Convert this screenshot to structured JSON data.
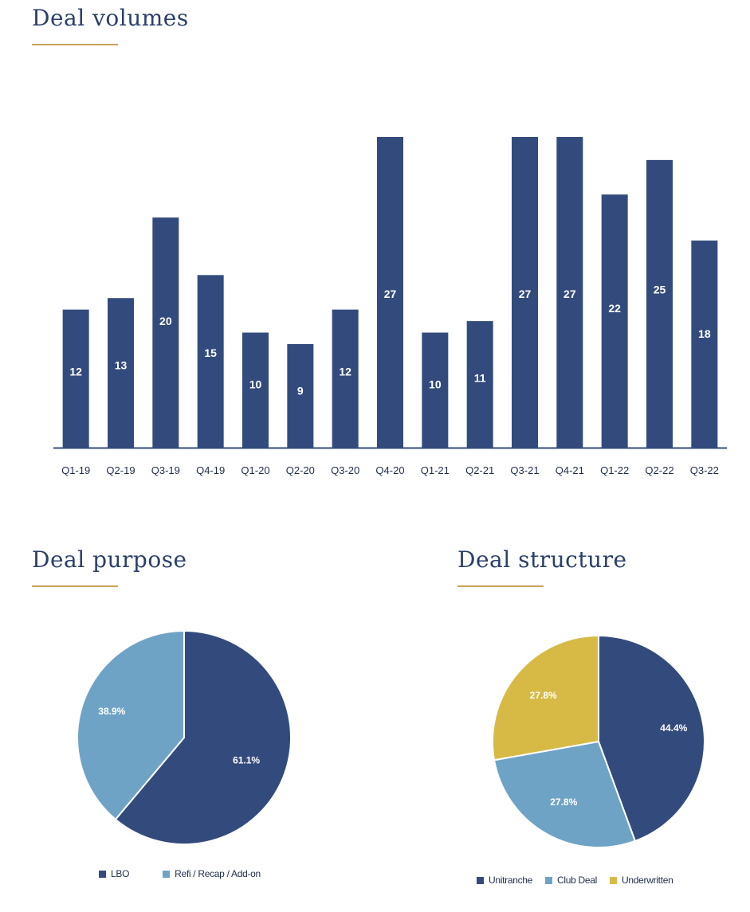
{
  "headings": {
    "volumes": "Deal volumes",
    "purpose": "Deal purpose",
    "structure": "Deal structure"
  },
  "colors": {
    "title": "#2a3f6b",
    "accent_line": "#c9a45a",
    "navy": "#334b7c",
    "light_blue": "#6fa3c6",
    "gold": "#d6ba45"
  },
  "chart_data": [
    {
      "type": "bar",
      "title": "Deal volumes",
      "categories": [
        "Q1-19",
        "Q2-19",
        "Q3-19",
        "Q4-19",
        "Q1-20",
        "Q2-20",
        "Q3-20",
        "Q4-20",
        "Q1-21",
        "Q2-21",
        "Q3-21",
        "Q4-21",
        "Q1-22",
        "Q2-22",
        "Q3-22"
      ],
      "values": [
        12,
        13,
        20,
        15,
        10,
        9,
        12,
        27,
        10,
        11,
        27,
        27,
        22,
        25,
        18
      ],
      "ylim": [
        0,
        27
      ],
      "grid": false,
      "legend": "none"
    },
    {
      "type": "pie",
      "title": "Deal purpose",
      "slices": [
        {
          "name": "LBO",
          "value": 61.1,
          "label": "61.1%",
          "color": "#334b7c"
        },
        {
          "name": "Refi / Recap / Add-on",
          "value": 38.9,
          "label": "38.9%",
          "color": "#6fa3c6"
        }
      ],
      "legend": "bottom"
    },
    {
      "type": "pie",
      "title": "Deal structure",
      "slices": [
        {
          "name": "Unitranche",
          "value": 44.4,
          "label": "44.4%",
          "color": "#334b7c"
        },
        {
          "name": "Club Deal",
          "value": 27.8,
          "label": "27.8%",
          "color": "#6fa3c6"
        },
        {
          "name": "Underwritten",
          "value": 27.8,
          "label": "27.8%",
          "color": "#d6ba45"
        }
      ],
      "legend": "bottom"
    }
  ]
}
